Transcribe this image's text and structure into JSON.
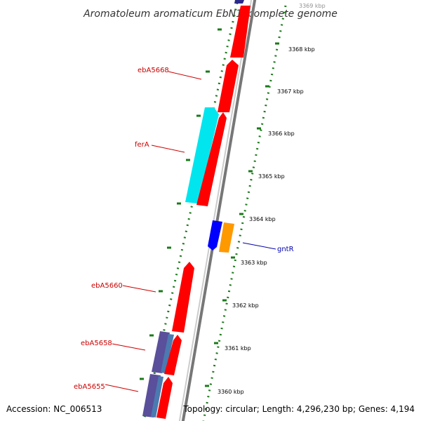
{
  "title": "Aromatoleum aromaticum EbN1, complete genome",
  "footer": {
    "accession": "Accession: NC_006513",
    "topology": "Topology: circular; Length: 4,296,230 bp; Genes: 4,194"
  },
  "colors": {
    "forward_gene": "#ff0000",
    "ferA": "#00e5ee",
    "gntR_blue": "#0000ff",
    "gntR_orange": "#ff9900",
    "slate_gene": "#5a4f9a",
    "backbone": "#888888",
    "tick_green": "#1a7a1a",
    "label_red": "#cc0000",
    "label_blue": "#0000aa"
  },
  "ruler_ticks": [
    {
      "label": "3360 kbp"
    },
    {
      "label": "3361 kbp"
    },
    {
      "label": "3362 kbp"
    },
    {
      "label": "3363 kbp"
    },
    {
      "label": "3364 kbp"
    },
    {
      "label": "3365 kbp"
    },
    {
      "label": "3366 kbp"
    },
    {
      "label": "3367 kbp"
    },
    {
      "label": "3368 kbp"
    },
    {
      "label": "3369 kbp"
    }
  ],
  "gene_labels": [
    {
      "name": "ebA5668",
      "color": "#cc0000"
    },
    {
      "name": "ferA",
      "color": "#cc0000"
    },
    {
      "name": "gntR",
      "color": "#0000aa"
    },
    {
      "name": "ebA5660",
      "color": "#cc0000"
    },
    {
      "name": "ebA5658",
      "color": "#cc0000"
    },
    {
      "name": "ebA5655",
      "color": "#cc0000"
    }
  ]
}
